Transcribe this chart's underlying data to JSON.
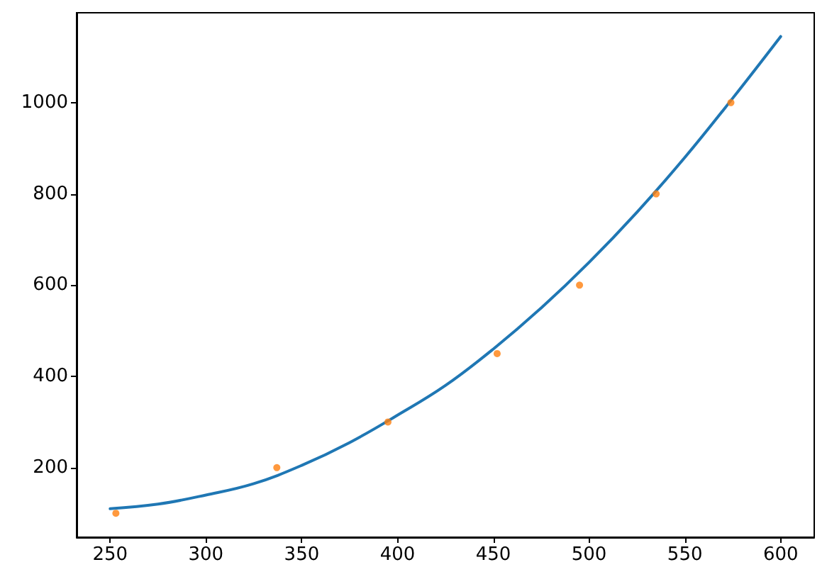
{
  "chart_data": {
    "type": "line",
    "series": [
      {
        "color": "#1f77b4",
        "marker": "none",
        "x": [
          250,
          275,
          300,
          325,
          350,
          375,
          400,
          425,
          450,
          475,
          500,
          525,
          550,
          575,
          600
        ],
        "values": [
          110,
          120,
          140,
          165,
          205,
          255,
          315,
          380,
          460,
          550,
          650,
          760,
          880,
          1010,
          1145
        ]
      },
      {
        "type": "scatter",
        "color": "#ff7f0e",
        "marker": "circle",
        "x": [
          253,
          337,
          395,
          452,
          495,
          535,
          574
        ],
        "values": [
          100,
          200,
          300,
          450,
          600,
          800,
          1000
        ]
      }
    ],
    "xlim": [
      232.5,
      617.5
    ],
    "ylim": [
      47.5,
      1197
    ],
    "xticks": [
      250,
      300,
      350,
      400,
      450,
      500,
      550,
      600
    ],
    "yticks": [
      200,
      400,
      600,
      800,
      1000
    ],
    "grid": false
  }
}
